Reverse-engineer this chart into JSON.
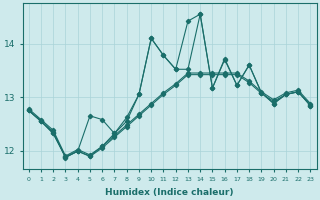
{
  "xlabel": "Humidex (Indice chaleur)",
  "background_color": "#ceeaec",
  "grid_color": "#aad4d8",
  "line_color": "#1a6e6a",
  "xlim": [
    -0.5,
    23.5
  ],
  "ylim": [
    11.65,
    14.75
  ],
  "xticks": [
    0,
    1,
    2,
    3,
    4,
    5,
    6,
    7,
    8,
    9,
    10,
    11,
    12,
    13,
    14,
    15,
    16,
    17,
    18,
    19,
    20,
    21,
    22,
    23
  ],
  "yticks": [
    12,
    13,
    14
  ],
  "line1_y": [
    12.78,
    12.58,
    12.38,
    11.9,
    12.02,
    11.92,
    12.08,
    12.28,
    12.48,
    12.68,
    12.88,
    13.08,
    13.25,
    13.45,
    13.45,
    13.45,
    13.45,
    13.45,
    13.3,
    13.1,
    12.95,
    13.08,
    13.13,
    12.88
  ],
  "line2_y": [
    12.75,
    12.55,
    12.35,
    11.87,
    11.99,
    11.89,
    12.05,
    12.25,
    12.45,
    12.65,
    12.85,
    13.05,
    13.22,
    13.42,
    13.42,
    13.42,
    13.42,
    13.42,
    13.27,
    13.07,
    12.92,
    13.05,
    13.1,
    12.85
  ],
  "line3_y": [
    12.75,
    12.55,
    12.32,
    11.88,
    11.99,
    11.9,
    12.08,
    12.32,
    12.62,
    13.05,
    14.1,
    13.78,
    13.52,
    13.52,
    14.55,
    13.17,
    13.7,
    13.22,
    13.6,
    13.08,
    12.88,
    13.05,
    13.1,
    12.84
  ],
  "line4_y": [
    12.75,
    12.55,
    12.32,
    11.88,
    11.99,
    12.65,
    12.58,
    12.32,
    12.55,
    13.05,
    14.1,
    13.78,
    13.52,
    14.42,
    14.55,
    13.17,
    13.72,
    13.22,
    13.6,
    13.08,
    12.88,
    13.05,
    13.1,
    12.84
  ]
}
